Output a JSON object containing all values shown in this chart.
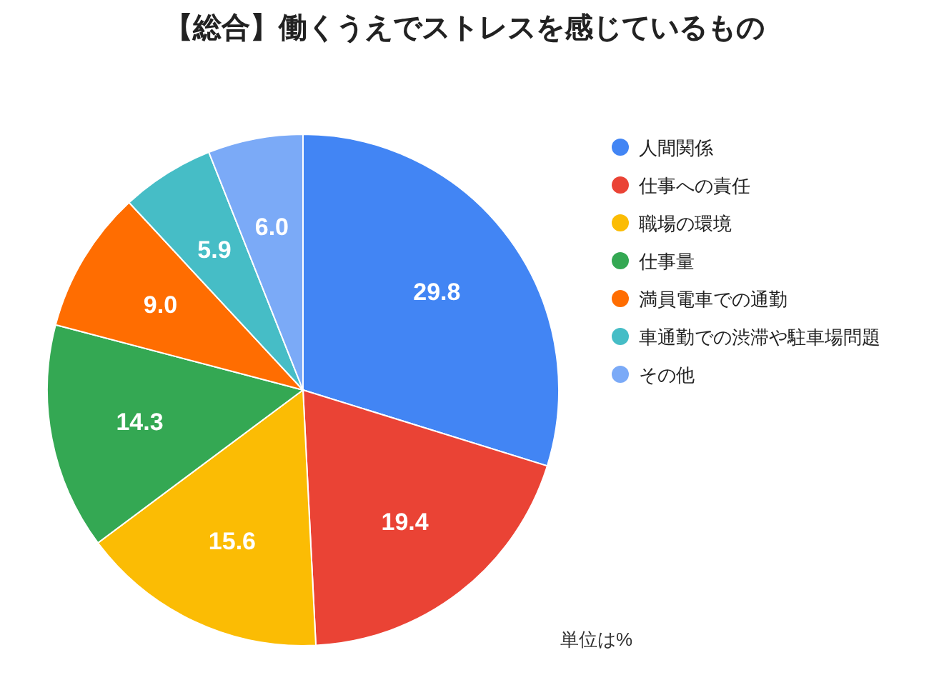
{
  "chart_data": {
    "type": "pie",
    "title": "【総合】働くうえでストレスを感じているもの",
    "categories": [
      "人間関係",
      "仕事への責任",
      "職場の環境",
      "仕事量",
      "満員電車での通勤",
      "車通勤での渋滞や駐車場問題",
      "その他"
    ],
    "values": [
      29.8,
      19.4,
      15.6,
      14.3,
      9.0,
      5.9,
      6.0
    ],
    "value_labels": [
      "29.8",
      "19.4",
      "15.6",
      "14.3",
      "9.0",
      "5.9",
      "6.0"
    ],
    "colors": [
      "#4285f4",
      "#ea4335",
      "#fbbc04",
      "#34a853",
      "#ff6d01",
      "#46bdc6",
      "#7baaf7"
    ],
    "legend": "right",
    "annotations": [
      "単位は%"
    ]
  }
}
